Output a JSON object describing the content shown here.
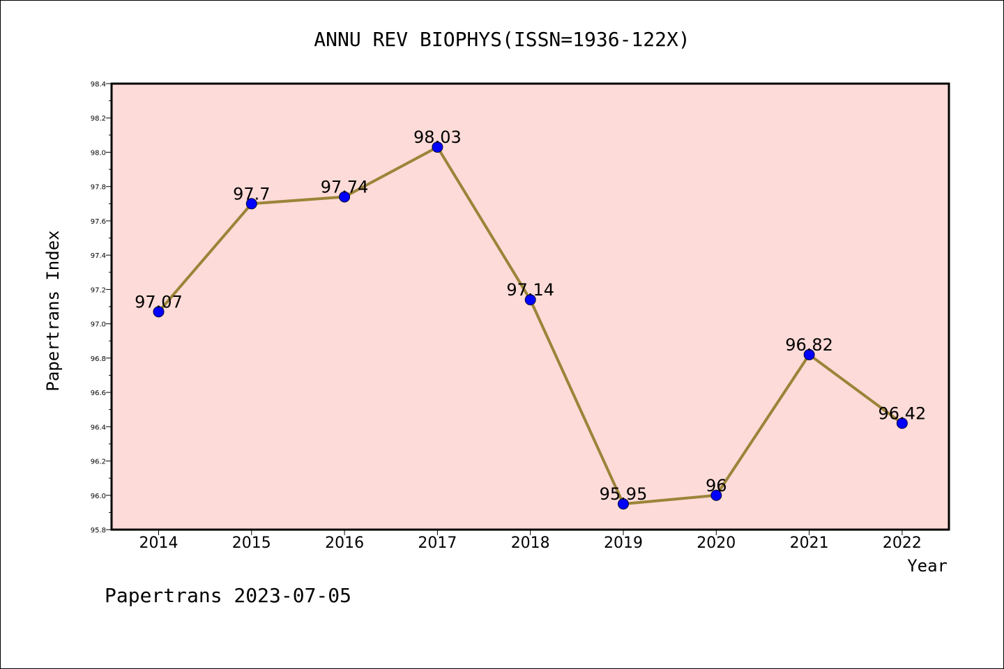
{
  "chart_data": {
    "type": "line",
    "title": "ANNU REV BIOPHYS(ISSN=1936-122X)",
    "xlabel": "Year",
    "ylabel": "Papertrans Index",
    "categories": [
      "2014",
      "2015",
      "2016",
      "2017",
      "2018",
      "2019",
      "2020",
      "2021",
      "2022"
    ],
    "series": [
      {
        "values": [
          97.07,
          97.7,
          97.74,
          98.03,
          97.14,
          95.95,
          96,
          96.82,
          96.42
        ],
        "labels": [
          "97.07",
          "97.7",
          "97.74",
          "98.03",
          "97.14",
          "95.95",
          "96",
          "96.82",
          "96.42"
        ]
      }
    ],
    "ylim": [
      95.8,
      98.4
    ],
    "yticks": [
      "95.8",
      "96.0",
      "96.2",
      "96.4",
      "96.6",
      "96.8",
      "97.0",
      "97.2",
      "97.4",
      "97.6",
      "97.8",
      "98.0",
      "98.2",
      "98.4"
    ],
    "grid": false,
    "colors": {
      "plot_background": "#fddbd8",
      "line": "#9b8439",
      "marker": "#0000ff"
    }
  },
  "footer": "Papertrans 2023-07-05"
}
